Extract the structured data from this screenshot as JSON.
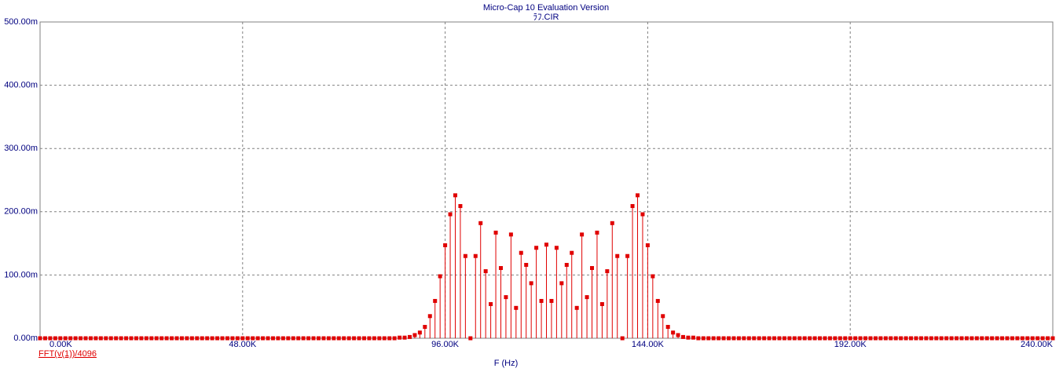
{
  "chart_data": {
    "type": "stem",
    "title": "Micro-Cap 10 Evaluation Version",
    "subtitle": "ﾗﾌ.CIR",
    "x_label": "F (Hz)",
    "xlim": [
      0,
      240000
    ],
    "xticks": [
      {
        "value": 0,
        "label": "0.00K"
      },
      {
        "value": 48000,
        "label": "48.00K"
      },
      {
        "value": 96000,
        "label": "96.00K"
      },
      {
        "value": 144000,
        "label": "144.00K"
      },
      {
        "value": 192000,
        "label": "192.00K"
      },
      {
        "value": 240000,
        "label": "240.00K"
      }
    ],
    "ylim": [
      0,
      0.5
    ],
    "yticks": [
      {
        "value": 0,
        "label": "0.00m"
      },
      {
        "value": 0.1,
        "label": "100.00m"
      },
      {
        "value": 0.2,
        "label": "200.00m"
      },
      {
        "value": 0.3,
        "label": "300.00m"
      },
      {
        "value": 0.4,
        "label": "400.00m"
      },
      {
        "value": 0.5,
        "label": "500.00m"
      }
    ],
    "grid": true,
    "x": [
      0,
      1200,
      2400,
      3600,
      4800,
      6000,
      7200,
      8400,
      9600,
      10800,
      12000,
      13200,
      14400,
      15600,
      16800,
      18000,
      19200,
      20400,
      21600,
      22800,
      24000,
      25200,
      26400,
      27600,
      28800,
      30000,
      31200,
      32400,
      33600,
      34800,
      36000,
      37200,
      38400,
      39600,
      40800,
      42000,
      43200,
      44400,
      45600,
      46800,
      48000,
      49200,
      50400,
      51600,
      52800,
      54000,
      55200,
      56400,
      57600,
      58800,
      60000,
      61200,
      62400,
      63600,
      64800,
      66000,
      67200,
      68400,
      69600,
      70800,
      72000,
      73200,
      74400,
      75600,
      76800,
      78000,
      79200,
      80400,
      81600,
      82800,
      84000,
      85200,
      86400,
      87600,
      88800,
      90000,
      91200,
      92400,
      93600,
      94800,
      96000,
      97200,
      98400,
      99600,
      100800,
      102000,
      103200,
      104400,
      105600,
      106800,
      108000,
      109200,
      110400,
      111600,
      112800,
      114000,
      115200,
      116400,
      117600,
      118800,
      120000,
      121200,
      122400,
      123600,
      124800,
      126000,
      127200,
      128400,
      129600,
      130800,
      132000,
      133200,
      134400,
      135600,
      136800,
      138000,
      139200,
      140400,
      141600,
      142800,
      144000,
      145200,
      146400,
      147600,
      148800,
      150000,
      151200,
      152400,
      153600,
      154800,
      156000,
      157200,
      158400,
      159600,
      160800,
      162000,
      163200,
      164400,
      165600,
      166800,
      168000,
      169200,
      170400,
      171600,
      172800,
      174000,
      175200,
      176400,
      177600,
      178800,
      180000,
      181200,
      182400,
      183600,
      184800,
      186000,
      187200,
      188400,
      189600,
      190800,
      192000,
      193200,
      194400,
      195600,
      196800,
      198000,
      199200,
      200400,
      201600,
      202800,
      204000,
      205200,
      206400,
      207600,
      208800,
      210000,
      211200,
      212400,
      213600,
      214800,
      216000,
      217200,
      218400,
      219600,
      220800,
      222000,
      223200,
      224400,
      225600,
      226800,
      228000,
      229200,
      230400,
      231600,
      232800,
      234000,
      235200,
      236400,
      237600,
      238800,
      240000
    ],
    "series": [
      {
        "name": "FFT(v(1))/4096",
        "color": "#e00000",
        "values": [
          0,
          0,
          0,
          0,
          0,
          0,
          0,
          0,
          0,
          0,
          0,
          0,
          0,
          0,
          0,
          0,
          0,
          0,
          0,
          0,
          0,
          0,
          0,
          0,
          0,
          0,
          0,
          0,
          0,
          0,
          0,
          0,
          0,
          0,
          0,
          0,
          0,
          0,
          0,
          0,
          0,
          0,
          0,
          0,
          0,
          0,
          0,
          0,
          0,
          0,
          0,
          0,
          0,
          0,
          0,
          0,
          0,
          0,
          0,
          0,
          0,
          0,
          0,
          0,
          0,
          0,
          0,
          0,
          0,
          0,
          0,
          0.001,
          0.001,
          0.002,
          0.005,
          0.009,
          0.018,
          0.035,
          0.059,
          0.098,
          0.147,
          0.196,
          0.226,
          0.209,
          0.13,
          0,
          0.13,
          0.182,
          0.106,
          0.054,
          0.167,
          0.111,
          0.065,
          0.164,
          0.048,
          0.135,
          0.116,
          0.087,
          0.143,
          0.059,
          0.148,
          0.059,
          0.143,
          0.087,
          0.116,
          0.135,
          0.048,
          0.164,
          0.065,
          0.111,
          0.167,
          0.054,
          0.106,
          0.182,
          0.13,
          0,
          0.13,
          0.209,
          0.226,
          0.196,
          0.147,
          0.098,
          0.059,
          0.035,
          0.018,
          0.009,
          0.005,
          0.002,
          0.001,
          0.001,
          0,
          0,
          0,
          0,
          0,
          0,
          0,
          0,
          0,
          0,
          0,
          0,
          0,
          0,
          0,
          0,
          0,
          0,
          0,
          0,
          0,
          0,
          0,
          0,
          0,
          0,
          0,
          0,
          0,
          0,
          0,
          0,
          0,
          0,
          0,
          0,
          0,
          0,
          0,
          0,
          0,
          0,
          0,
          0,
          0,
          0,
          0,
          0,
          0,
          0,
          0,
          0,
          0,
          0,
          0,
          0,
          0,
          0,
          0,
          0,
          0,
          0,
          0,
          0,
          0,
          0,
          0,
          0,
          0,
          0,
          0
        ]
      }
    ]
  }
}
